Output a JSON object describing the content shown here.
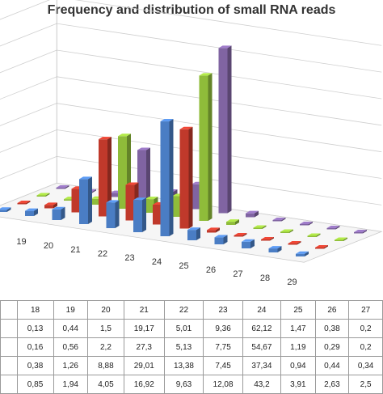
{
  "chart_data": {
    "type": "bar",
    "title": "Frequency and distribution of small RNA reads",
    "categories": [
      "18",
      "19",
      "20",
      "21",
      "22",
      "23",
      "24",
      "25",
      "26",
      "27",
      "28",
      "29"
    ],
    "series": [
      {
        "color": "#4a7dc4",
        "values": [
          0.85,
          1.94,
          4.05,
          16.92,
          9.63,
          12.08,
          43.2,
          3.91,
          2.63,
          2.5,
          1.5,
          1.0
        ]
      },
      {
        "color": "#c0392b",
        "values": [
          0.38,
          1.26,
          8.88,
          29.01,
          13.38,
          7.45,
          37.34,
          0.94,
          0.44,
          0.34,
          0.3,
          0.3
        ]
      },
      {
        "color": "#8fbc3a",
        "values": [
          0.16,
          0.56,
          2.2,
          27.3,
          5.13,
          7.75,
          54.67,
          1.19,
          0.29,
          0.2,
          0.2,
          0.2
        ]
      },
      {
        "color": "#8064a2",
        "values": [
          0.13,
          0.44,
          1.5,
          19.17,
          5.01,
          9.36,
          62.12,
          1.47,
          0.38,
          0.2,
          0.2,
          0.2
        ]
      }
    ],
    "ylim": [
      0,
      70
    ],
    "grid": true
  },
  "table": {
    "header": [
      "18",
      "19",
      "20",
      "21",
      "22",
      "23",
      "24",
      "25",
      "26",
      "27"
    ],
    "rows": [
      [
        "0,13",
        "0,44",
        "1,5",
        "19,17",
        "5,01",
        "9,36",
        "62,12",
        "1,47",
        "0,38",
        "0,2"
      ],
      [
        "0,16",
        "0,56",
        "2,2",
        "27,3",
        "5,13",
        "7,75",
        "54,67",
        "1,19",
        "0,29",
        "0,2"
      ],
      [
        "0,38",
        "1,26",
        "8,88",
        "29,01",
        "13,38",
        "7,45",
        "37,34",
        "0,94",
        "0,44",
        "0,34"
      ],
      [
        "0,85",
        "1,94",
        "4,05",
        "16,92",
        "9,63",
        "12,08",
        "43,2",
        "3,91",
        "2,63",
        "2,5"
      ]
    ]
  }
}
